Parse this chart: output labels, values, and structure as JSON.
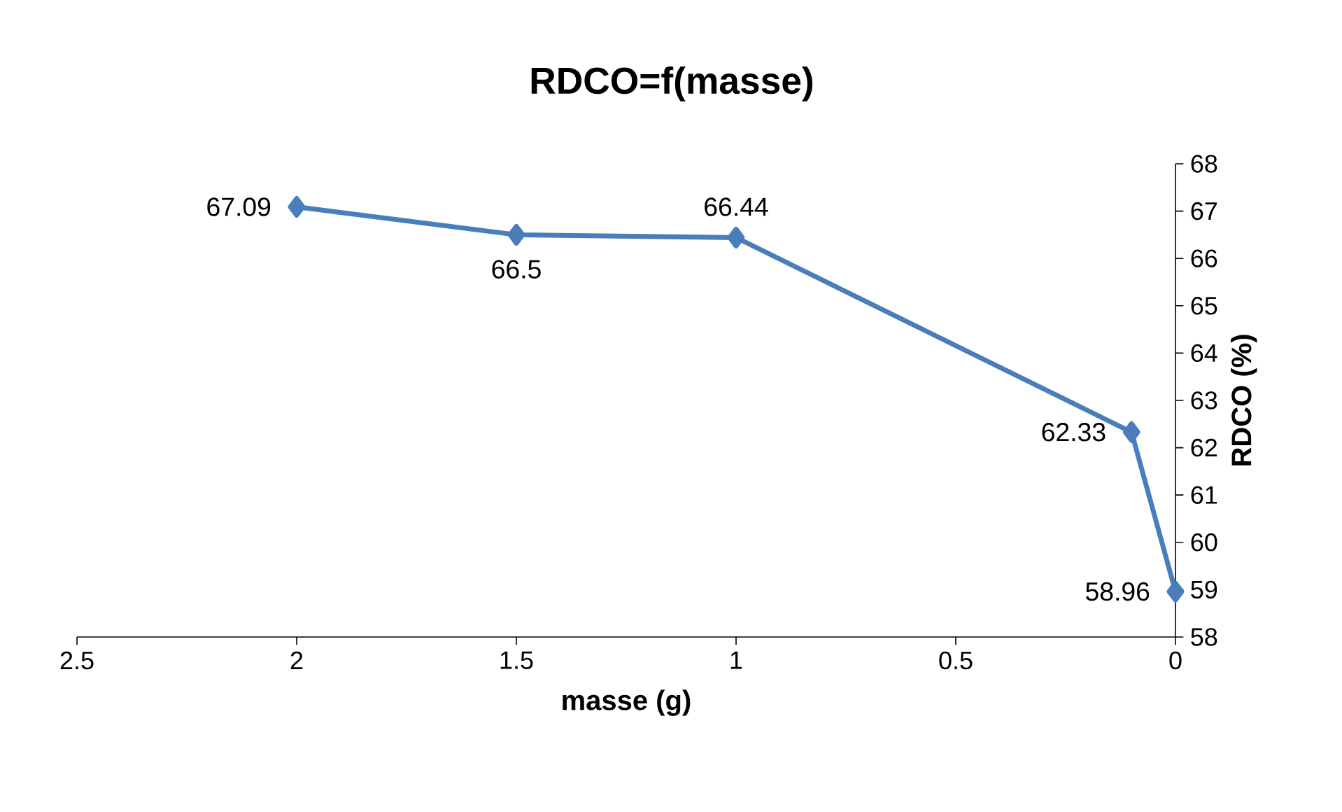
{
  "chart_data": {
    "type": "line",
    "title": "RDCO=f(masse)",
    "xlabel": "masse (g)",
    "ylabel": "RDCO (%)",
    "x": [
      2,
      1.5,
      1,
      0.1,
      0
    ],
    "series": [
      {
        "color": "#4a7ebb",
        "values": [
          67.09,
          66.5,
          66.44,
          62.33,
          58.96
        ],
        "value_labels": [
          "67.09",
          "66.5",
          "66.44",
          "62.33",
          "58.96"
        ]
      }
    ],
    "xlim": [
      2.5,
      0
    ],
    "xticks": [
      2.5,
      2,
      1.5,
      1,
      0.5,
      0
    ],
    "ylim": [
      58,
      68
    ],
    "yticks": [
      58,
      59,
      60,
      61,
      62,
      63,
      64,
      65,
      66,
      67,
      68
    ],
    "marker": "diamond",
    "line_style": "solid"
  }
}
